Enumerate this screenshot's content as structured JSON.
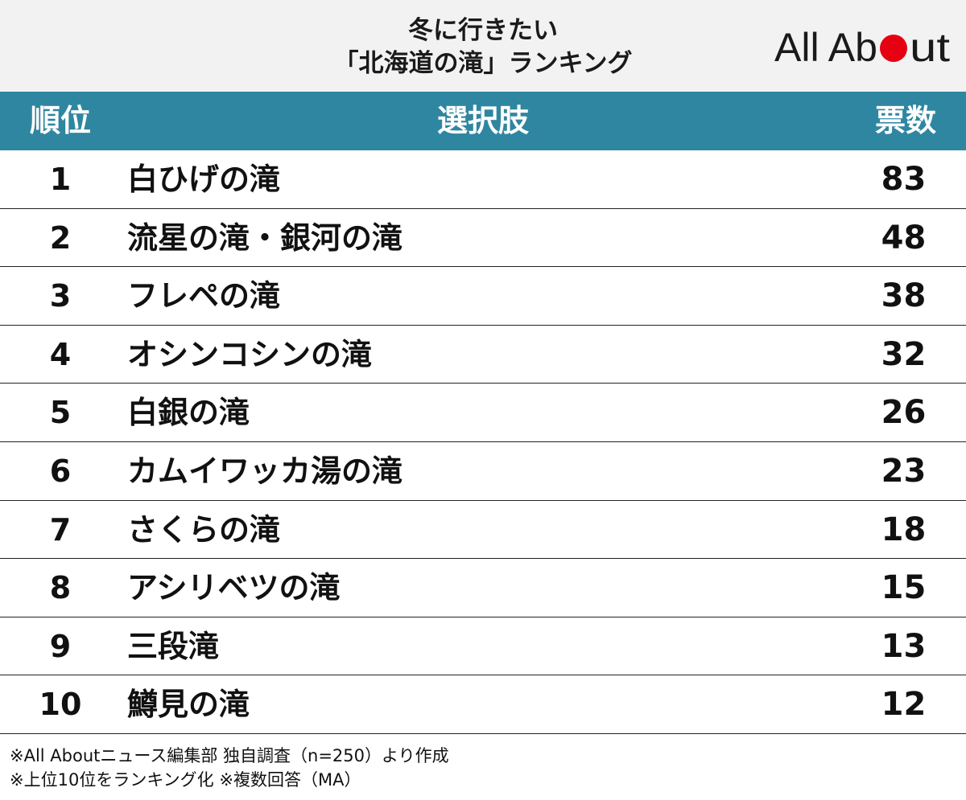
{
  "title": {
    "line1": "冬に行きたい",
    "line2": "「北海道の滝」ランキング"
  },
  "logo": {
    "text_part1": "All Ab",
    "text_part2": "ut",
    "dot_color": "#e60012"
  },
  "table": {
    "headers": {
      "rank": "順位",
      "choice": "選択肢",
      "votes": "票数"
    },
    "header_color": "#2f86a0",
    "rows": [
      {
        "rank": "1",
        "name": "白ひげの滝",
        "votes": "83"
      },
      {
        "rank": "2",
        "name": "流星の滝・銀河の滝",
        "votes": "48"
      },
      {
        "rank": "3",
        "name": "フレペの滝",
        "votes": "38"
      },
      {
        "rank": "4",
        "name": "オシンコシンの滝",
        "votes": "32"
      },
      {
        "rank": "5",
        "name": "白銀の滝",
        "votes": "26"
      },
      {
        "rank": "6",
        "name": "カムイワッカ湯の滝",
        "votes": "23"
      },
      {
        "rank": "7",
        "name": "さくらの滝",
        "votes": "18"
      },
      {
        "rank": "8",
        "name": "アシリベツの滝",
        "votes": "15"
      },
      {
        "rank": "9",
        "name": "三段滝",
        "votes": "13"
      },
      {
        "rank": "10",
        "name": "鱒見の滝",
        "votes": "12"
      }
    ]
  },
  "footnotes": {
    "line1": "※All Aboutニュース編集部 独自調査（n=250）より作成",
    "line2": "※上位10位をランキング化 ※複数回答（MA）"
  }
}
